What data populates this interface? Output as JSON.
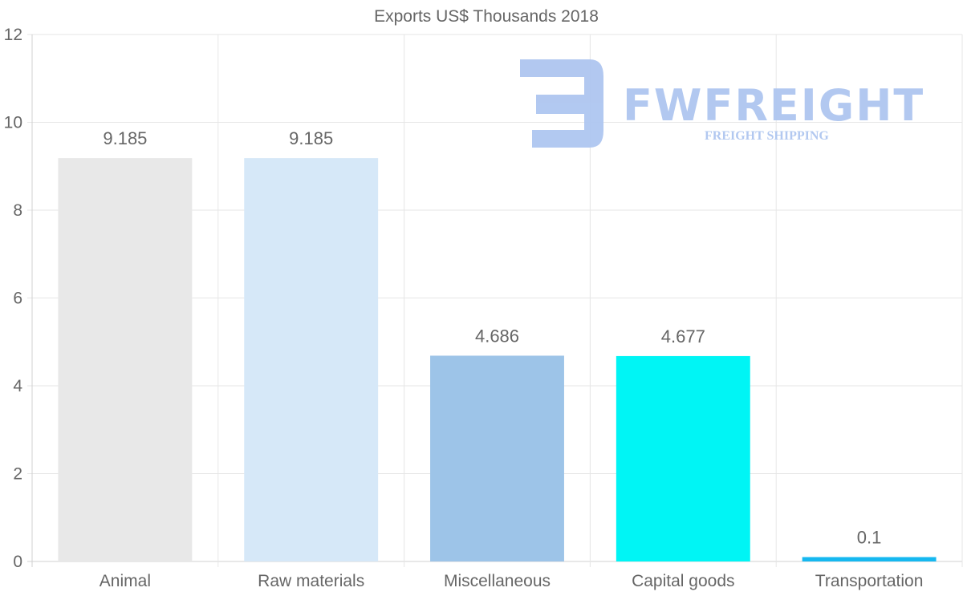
{
  "watermark": {
    "brand": "FWFREIGHT",
    "tagline": "FREIGHT SHIPPING",
    "color": "#aec6f0"
  },
  "chart_data": {
    "type": "bar",
    "title": "Exports US$ Thousands 2018",
    "xlabel": "",
    "ylabel": "",
    "ylim": [
      0,
      12
    ],
    "yticks": [
      0,
      2,
      4,
      6,
      8,
      10,
      12
    ],
    "grid": true,
    "categories": [
      "Animal",
      "Raw materials",
      "Miscellaneous",
      "Capital goods",
      "Transportation"
    ],
    "values": [
      9.185,
      9.185,
      4.686,
      4.677,
      0.1
    ],
    "value_labels": [
      "9.185",
      "9.185",
      "4.686",
      "4.677",
      "0.1"
    ],
    "colors": [
      "#e8e8e8",
      "#d6e8f8",
      "#9dc4e8",
      "#00f5f5",
      "#16b8f0"
    ]
  }
}
